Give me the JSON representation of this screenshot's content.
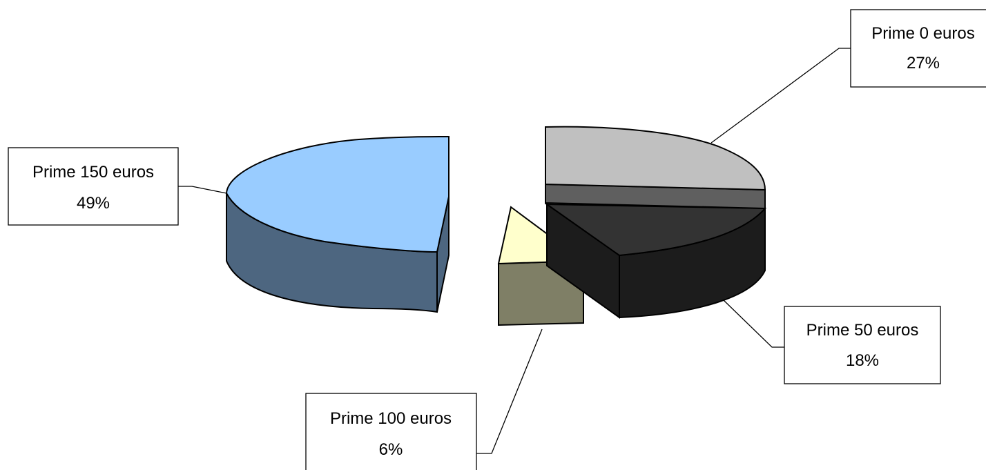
{
  "chart_data": {
    "type": "pie",
    "style": "3d-exploded",
    "title": "",
    "legend": "none",
    "categories": [
      "Prime 0 euros",
      "Prime 50 euros",
      "Prime 100 euros",
      "Prime 150 euros"
    ],
    "values": [
      27,
      18,
      6,
      49
    ],
    "unit": "%",
    "slices": [
      {
        "label": "Prime 0 euros",
        "pct_label": "27%",
        "value": 27,
        "top_color": "#c0c0c0",
        "side_color": "#5f5f5f"
      },
      {
        "label": "Prime 50 euros",
        "pct_label": "18%",
        "value": 18,
        "top_color": "#333333",
        "side_color": "#1c1c1c"
      },
      {
        "label": "Prime 100 euros",
        "pct_label": "6%",
        "value": 6,
        "top_color": "#ffffcc",
        "side_color": "#7f7f66"
      },
      {
        "label": "Prime 150 euros",
        "pct_label": "49%",
        "value": 49,
        "top_color": "#99ccff",
        "side_color": "#4d6680"
      }
    ]
  }
}
